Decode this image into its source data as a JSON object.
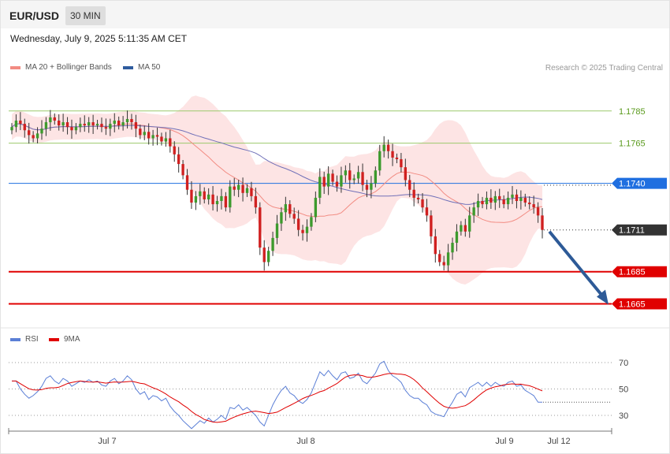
{
  "header": {
    "pair": "EUR/USD",
    "timeframe": "30 MIN"
  },
  "datetime": "Wednesday, July 9, 2025 5:11:35 AM CET",
  "legend": {
    "bb": {
      "label": "MA 20 + Bollinger Bands",
      "color": "#f28b82"
    },
    "ma50": {
      "label": "MA 50",
      "color": "#2f5c9e"
    }
  },
  "credit": "Research © 2025 Trading Central",
  "rsi_legend": {
    "rsi": {
      "label": "RSI",
      "color": "#5b7fd6"
    },
    "ma9": {
      "label": "9MA",
      "color": "#e00000"
    }
  },
  "chart_data": {
    "type": "candlestick",
    "ylim": [
      1.1653,
      1.1805
    ],
    "x_labels": [
      "Jul 7",
      "Jul 8",
      "Jul 9",
      "Jul 12"
    ],
    "levels": [
      {
        "value": 1.1785,
        "label": "1.1785",
        "kind": "resistance",
        "color": "#9cc96b"
      },
      {
        "value": 1.1765,
        "label": "1.1765",
        "kind": "resistance",
        "color": "#9cc96b"
      },
      {
        "value": 1.174,
        "label": "1.1740",
        "kind": "pivot",
        "color": "#1f6fe0"
      },
      {
        "value": 1.1711,
        "label": "1.1711",
        "kind": "last-price",
        "color": "#333333"
      },
      {
        "value": 1.1685,
        "label": "1.1685",
        "kind": "support",
        "color": "#e00000"
      },
      {
        "value": 1.1665,
        "label": "1.1665",
        "kind": "support",
        "color": "#e00000"
      }
    ],
    "closes": [
      1.1775,
      1.1779,
      1.1777,
      1.1773,
      1.177,
      1.1768,
      1.1771,
      1.1774,
      1.1778,
      1.1781,
      1.1779,
      1.1776,
      1.1778,
      1.1775,
      1.1773,
      1.1775,
      1.1777,
      1.1776,
      1.1778,
      1.1776,
      1.1777,
      1.1775,
      1.1774,
      1.1777,
      1.1779,
      1.1776,
      1.1778,
      1.178,
      1.1778,
      1.1774,
      1.177,
      1.1772,
      1.1768,
      1.177,
      1.1769,
      1.1766,
      1.1768,
      1.1763,
      1.1758,
      1.1752,
      1.1745,
      1.1736,
      1.1728,
      1.1732,
      1.1735,
      1.173,
      1.1733,
      1.1727,
      1.1729,
      1.1732,
      1.1725,
      1.1738,
      1.1736,
      1.1739,
      1.1734,
      1.1737,
      1.1732,
      1.1725,
      1.17,
      1.1691,
      1.1698,
      1.1706,
      1.1715,
      1.1722,
      1.1727,
      1.1721,
      1.1718,
      1.1711,
      1.1709,
      1.1713,
      1.1719,
      1.1731,
      1.1744,
      1.1738,
      1.1746,
      1.1741,
      1.1738,
      1.1745,
      1.1748,
      1.1742,
      1.1743,
      1.1747,
      1.1739,
      1.1736,
      1.174,
      1.1748,
      1.176,
      1.1764,
      1.176,
      1.1756,
      1.1755,
      1.175,
      1.1742,
      1.1736,
      1.1731,
      1.173,
      1.1725,
      1.172,
      1.1707,
      1.1696,
      1.1691,
      1.1689,
      1.1697,
      1.1703,
      1.171,
      1.1714,
      1.171,
      1.172,
      1.1725,
      1.1729,
      1.1727,
      1.1731,
      1.1728,
      1.1732,
      1.173,
      1.1727,
      1.1731,
      1.1733,
      1.1729,
      1.1731,
      1.1728,
      1.1727,
      1.1725,
      1.172,
      1.1711
    ],
    "rsi": [
      56,
      56,
      50,
      46,
      43,
      45,
      48,
      52,
      58,
      60,
      56,
      54,
      58,
      56,
      52,
      54,
      56,
      55,
      57,
      55,
      56,
      53,
      52,
      56,
      58,
      54,
      56,
      60,
      57,
      50,
      46,
      48,
      42,
      45,
      44,
      41,
      43,
      37,
      33,
      30,
      26,
      23,
      20,
      23,
      26,
      24,
      28,
      25,
      27,
      30,
      27,
      36,
      35,
      38,
      34,
      36,
      33,
      30,
      25,
      22,
      30,
      38,
      44,
      49,
      52,
      47,
      45,
      41,
      39,
      42,
      47,
      55,
      63,
      60,
      64,
      60,
      57,
      62,
      63,
      58,
      59,
      62,
      56,
      54,
      58,
      62,
      69,
      71,
      64,
      60,
      58,
      55,
      49,
      45,
      43,
      43,
      40,
      38,
      33,
      31,
      30,
      29,
      35,
      40,
      46,
      48,
      44,
      51,
      53,
      55,
      52,
      55,
      52,
      55,
      53,
      52,
      55,
      56,
      52,
      53,
      49,
      47,
      45,
      40,
      40
    ]
  }
}
